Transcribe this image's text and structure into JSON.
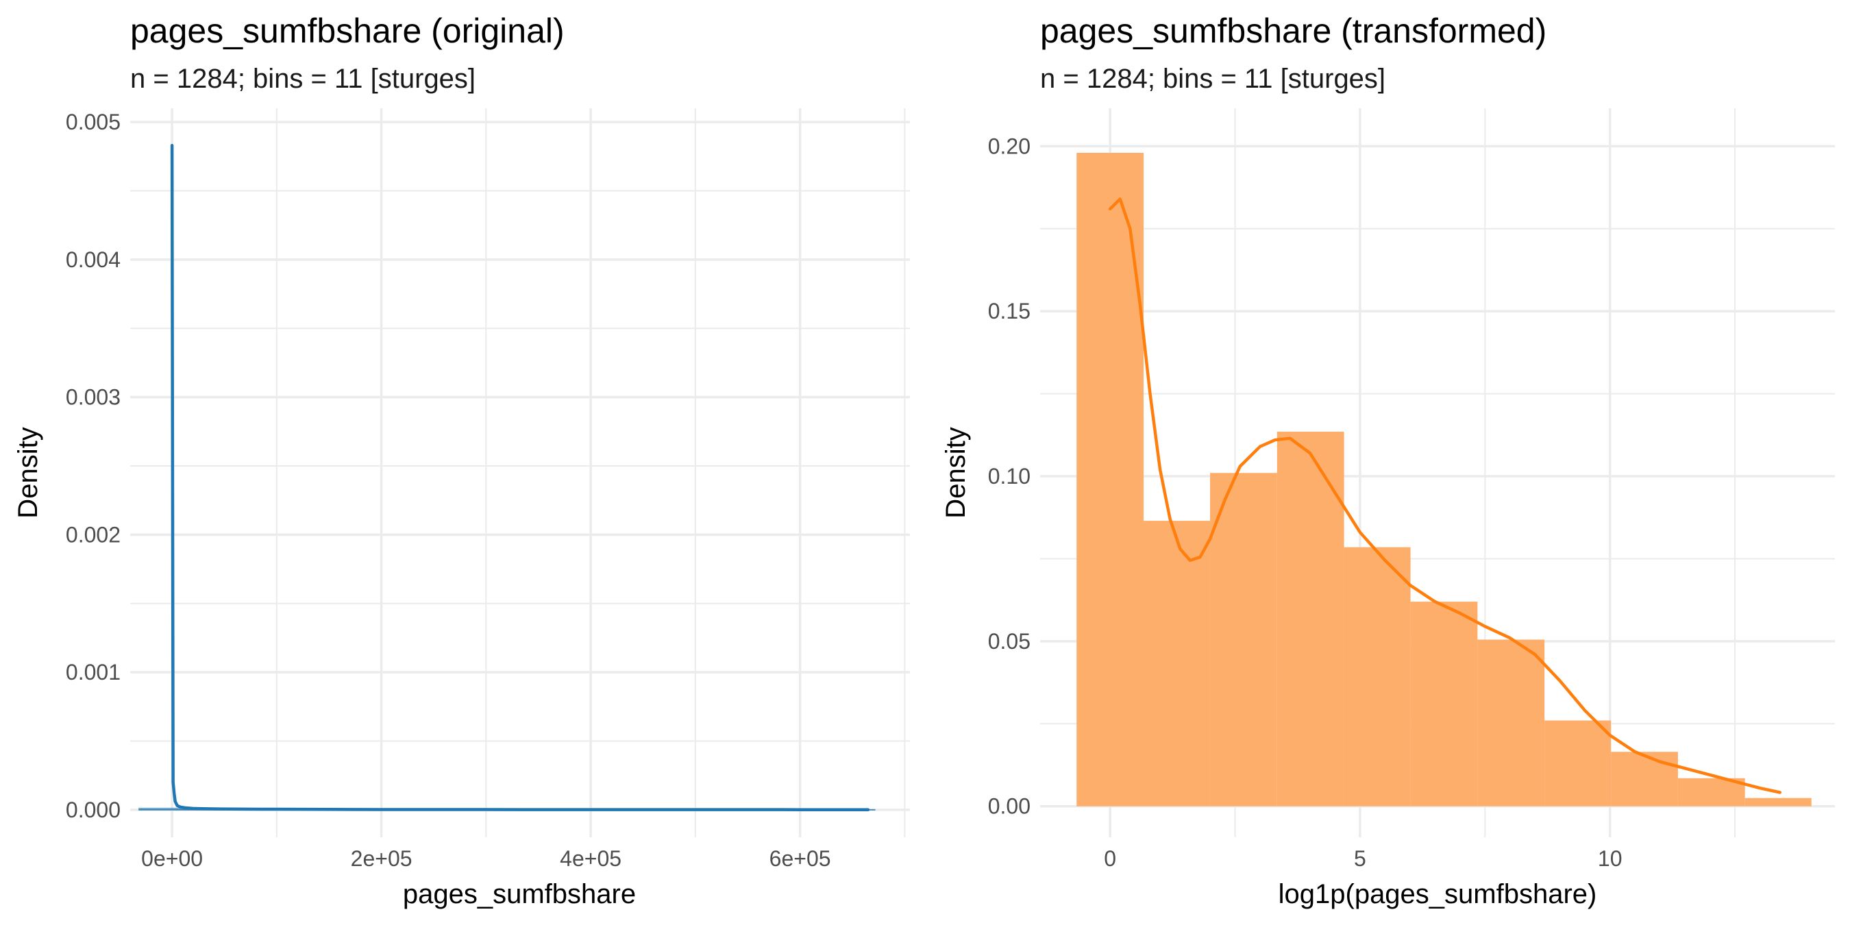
{
  "chart_data": [
    {
      "type": "line",
      "title": "pages_sumfbshare (original)",
      "subtitle": "n = 1284; bins = 11 [sturges]",
      "xlabel": "pages_sumfbshare",
      "ylabel": "Density",
      "xlim": [
        -40000,
        705000
      ],
      "ylim": [
        -0.0002,
        0.0051
      ],
      "x_ticks": [
        {
          "value": 0,
          "label": "0e+00"
        },
        {
          "value": 200000,
          "label": "2e+05"
        },
        {
          "value": 400000,
          "label": "4e+05"
        },
        {
          "value": 600000,
          "label": "6e+05"
        }
      ],
      "y_ticks": [
        {
          "value": 0.0,
          "label": "0.000"
        },
        {
          "value": 0.001,
          "label": "0.001"
        },
        {
          "value": 0.002,
          "label": "0.002"
        },
        {
          "value": 0.003,
          "label": "0.003"
        },
        {
          "value": 0.004,
          "label": "0.004"
        },
        {
          "value": 0.005,
          "label": "0.005"
        }
      ],
      "grid": true,
      "colors": {
        "line": "#1f77b4",
        "grid": "#ebebeb"
      },
      "histogram": {
        "bin_edges": [
          -32000,
          32000,
          96000,
          160000,
          224000,
          288000,
          352000,
          416000,
          480000,
          544000,
          608000,
          672000
        ],
        "density": [
          1.49e-05,
          5e-08,
          2e-08,
          1e-08,
          1e-08,
          5e-09,
          5e-09,
          3e-09,
          2e-09,
          2e-09,
          1e-09
        ]
      },
      "density_curve": {
        "x": [
          0,
          1000,
          2000,
          3000,
          5000,
          8000,
          12000,
          20000,
          30000,
          45000,
          70000,
          100000,
          150000,
          200000,
          300000,
          400000,
          500000,
          600000,
          665000
        ],
        "y": [
          0.00483,
          0.0002,
          0.00012,
          6e-05,
          3e-05,
          2e-05,
          1.5e-05,
          1e-05,
          8e-06,
          6e-06,
          5e-06,
          4e-06,
          3e-06,
          2e-06,
          1.5e-06,
          1.2e-06,
          1e-06,
          8e-07,
          5e-07
        ]
      }
    },
    {
      "type": "bar",
      "title": "pages_sumfbshare (transformed)",
      "subtitle": "n = 1284; bins = 11 [sturges]",
      "xlabel": "log1p(pages_sumfbshare)",
      "ylabel": "Density",
      "xlim": [
        -1.4,
        14.5
      ],
      "ylim": [
        -0.0094,
        0.2115
      ],
      "x_ticks": [
        {
          "value": 0,
          "label": "0"
        },
        {
          "value": 5,
          "label": "5"
        },
        {
          "value": 10,
          "label": "10"
        }
      ],
      "y_ticks": [
        {
          "value": 0.0,
          "label": "0.00"
        },
        {
          "value": 0.05,
          "label": "0.05"
        },
        {
          "value": 0.1,
          "label": "0.10"
        },
        {
          "value": 0.15,
          "label": "0.15"
        },
        {
          "value": 0.2,
          "label": "0.20"
        }
      ],
      "grid": true,
      "colors": {
        "bars": "#fdae6b",
        "line": "#ff7f0e",
        "grid": "#ebebeb"
      },
      "histogram": {
        "bin_edges": [
          -0.67,
          0.67,
          2.0,
          3.34,
          4.68,
          6.01,
          7.35,
          8.69,
          10.02,
          11.36,
          12.7,
          14.03
        ],
        "density": [
          0.198,
          0.0865,
          0.101,
          0.1135,
          0.0785,
          0.062,
          0.0505,
          0.026,
          0.0165,
          0.0085,
          0.0025
        ]
      },
      "density_curve": {
        "x": [
          0.0,
          0.2,
          0.4,
          0.6,
          0.8,
          1.0,
          1.2,
          1.4,
          1.6,
          1.8,
          2.0,
          2.3,
          2.6,
          3.0,
          3.3,
          3.6,
          4.0,
          4.5,
          5.0,
          5.5,
          6.0,
          6.5,
          7.0,
          7.5,
          8.0,
          8.5,
          9.0,
          9.5,
          10.0,
          10.5,
          11.0,
          12.0,
          13.0,
          13.4
        ],
        "y": [
          0.181,
          0.184,
          0.175,
          0.152,
          0.125,
          0.102,
          0.087,
          0.078,
          0.0745,
          0.0755,
          0.081,
          0.093,
          0.103,
          0.109,
          0.111,
          0.1115,
          0.107,
          0.095,
          0.083,
          0.0745,
          0.067,
          0.062,
          0.0585,
          0.0545,
          0.051,
          0.046,
          0.038,
          0.029,
          0.0215,
          0.0165,
          0.0135,
          0.0095,
          0.0055,
          0.0042
        ]
      }
    }
  ]
}
